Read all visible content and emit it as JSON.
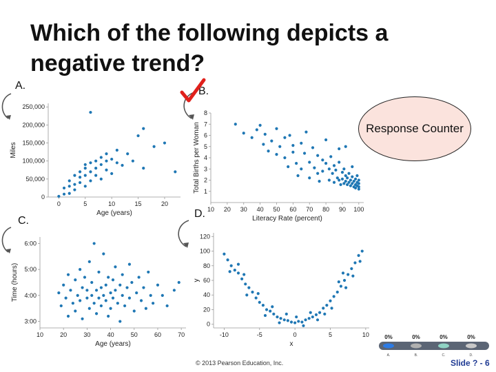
{
  "slide": {
    "title": "Which of the following depicts a negative trend?",
    "labels": {
      "a": "A.",
      "b": "B.",
      "c": "C.",
      "d": "D."
    },
    "response_counter": "Response Counter",
    "footer": "© 2013 Pearson Education, Inc.",
    "slide_number": "Slide ? - 6",
    "checkmark_color": "#e0201b",
    "point_color": "#1f77b4",
    "poll": [
      {
        "pct": "0%",
        "label": "A."
      },
      {
        "pct": "0%",
        "label": "B."
      },
      {
        "pct": "0%",
        "label": "C."
      },
      {
        "pct": "0%",
        "label": "D."
      }
    ]
  },
  "chart_data": [
    {
      "id": "A",
      "type": "scatter",
      "xlabel": "Age (years)",
      "ylabel": "Miles",
      "xlim": [
        -2,
        23
      ],
      "ylim": [
        0,
        260000
      ],
      "xticks": [
        0,
        5,
        10,
        15,
        20
      ],
      "yticks": [
        0,
        50000,
        100000,
        150000,
        200000,
        250000
      ],
      "ytick_labels": [
        "0",
        "50,000",
        "100,000",
        "150,000",
        "200,000",
        "250,000"
      ],
      "points": [
        [
          0,
          2000
        ],
        [
          1,
          8000
        ],
        [
          1,
          25000
        ],
        [
          2,
          10000
        ],
        [
          2,
          30000
        ],
        [
          2,
          45000
        ],
        [
          3,
          20000
        ],
        [
          3,
          35000
        ],
        [
          3,
          60000
        ],
        [
          4,
          40000
        ],
        [
          4,
          55000
        ],
        [
          4,
          70000
        ],
        [
          5,
          30000
        ],
        [
          5,
          60000
        ],
        [
          5,
          80000
        ],
        [
          5,
          90000
        ],
        [
          6,
          45000
        ],
        [
          6,
          70000
        ],
        [
          6,
          95000
        ],
        [
          7,
          60000
        ],
        [
          7,
          80000
        ],
        [
          7,
          100000
        ],
        [
          8,
          50000
        ],
        [
          8,
          90000
        ],
        [
          8,
          110000
        ],
        [
          9,
          75000
        ],
        [
          9,
          100000
        ],
        [
          9,
          120000
        ],
        [
          10,
          65000
        ],
        [
          10,
          105000
        ],
        [
          11,
          95000
        ],
        [
          11,
          130000
        ],
        [
          6,
          235000
        ],
        [
          12,
          88000
        ],
        [
          13,
          120000
        ],
        [
          14,
          100000
        ],
        [
          15,
          170000
        ],
        [
          16,
          80000
        ],
        [
          16,
          190000
        ],
        [
          18,
          140000
        ],
        [
          20,
          150000
        ],
        [
          22,
          70000
        ]
      ]
    },
    {
      "id": "B",
      "type": "scatter",
      "xlabel": "Literacy Rate (percent)",
      "ylabel": "Total Births per Woman",
      "xlim": [
        10,
        103
      ],
      "ylim": [
        0,
        8
      ],
      "xticks": [
        10,
        20,
        30,
        40,
        50,
        60,
        70,
        80,
        90,
        100
      ],
      "yticks": [
        1,
        2,
        3,
        4,
        5,
        6,
        7,
        8
      ],
      "points": [
        [
          25,
          7
        ],
        [
          30,
          6.2
        ],
        [
          35,
          5.8
        ],
        [
          38,
          6.5
        ],
        [
          40,
          6.9
        ],
        [
          42,
          5.2
        ],
        [
          43,
          6.1
        ],
        [
          45,
          4.6
        ],
        [
          47,
          5.5
        ],
        [
          50,
          6.6
        ],
        [
          50,
          4.3
        ],
        [
          52,
          5.0
        ],
        [
          55,
          5.8
        ],
        [
          55,
          4.0
        ],
        [
          57,
          3.2
        ],
        [
          58,
          6.0
        ],
        [
          60,
          5.1
        ],
        [
          60,
          4.5
        ],
        [
          62,
          3.5
        ],
        [
          63,
          2.4
        ],
        [
          65,
          5.3
        ],
        [
          65,
          3.0
        ],
        [
          67,
          4.4
        ],
        [
          68,
          6.3
        ],
        [
          70,
          3.6
        ],
        [
          70,
          2.2
        ],
        [
          72,
          4.9
        ],
        [
          73,
          3.1
        ],
        [
          75,
          4.2
        ],
        [
          75,
          2.6
        ],
        [
          76,
          1.9
        ],
        [
          78,
          3.8
        ],
        [
          78,
          2.8
        ],
        [
          80,
          5.6
        ],
        [
          80,
          3.5
        ],
        [
          82,
          3.0
        ],
        [
          82,
          2.0
        ],
        [
          83,
          4.1
        ],
        [
          84,
          2.6
        ],
        [
          85,
          3.3
        ],
        [
          85,
          1.8
        ],
        [
          86,
          2.9
        ],
        [
          87,
          2.2
        ],
        [
          88,
          3.6
        ],
        [
          88,
          2.0
        ],
        [
          89,
          1.6
        ],
        [
          90,
          2.7
        ],
        [
          90,
          2.1
        ],
        [
          91,
          3.0
        ],
        [
          91,
          1.7
        ],
        [
          92,
          2.4
        ],
        [
          92,
          1.9
        ],
        [
          93,
          2.2
        ],
        [
          93,
          1.6
        ],
        [
          94,
          2.6
        ],
        [
          94,
          1.8
        ],
        [
          95,
          2.0
        ],
        [
          95,
          1.5
        ],
        [
          96,
          2.3
        ],
        [
          96,
          1.7
        ],
        [
          97,
          1.9
        ],
        [
          97,
          1.4
        ],
        [
          98,
          2.1
        ],
        [
          98,
          1.6
        ],
        [
          98,
          1.3
        ],
        [
          99,
          1.8
        ],
        [
          99,
          1.5
        ],
        [
          99,
          2.4
        ],
        [
          100,
          1.7
        ],
        [
          100,
          1.4
        ],
        [
          100,
          2.0
        ],
        [
          100,
          1.2
        ],
        [
          92,
          5.0
        ],
        [
          88,
          4.8
        ],
        [
          96,
          3.2
        ]
      ]
    },
    {
      "id": "C",
      "type": "scatter",
      "xlabel": "Age (years)",
      "ylabel": "Time (hours)",
      "xlim": [
        10,
        72
      ],
      "ylim": [
        2.75,
        6.25
      ],
      "xticks": [
        10,
        20,
        30,
        40,
        50,
        60,
        70
      ],
      "yticks": [
        3,
        4,
        5,
        6
      ],
      "ytick_labels": [
        "3:00",
        "4:00",
        "5:00",
        "6:00"
      ],
      "points": [
        [
          18,
          4.1
        ],
        [
          19,
          3.6
        ],
        [
          20,
          4.4
        ],
        [
          21,
          3.9
        ],
        [
          22,
          4.8
        ],
        [
          22,
          3.2
        ],
        [
          23,
          4.2
        ],
        [
          24,
          3.7
        ],
        [
          25,
          4.6
        ],
        [
          25,
          3.4
        ],
        [
          26,
          4.0
        ],
        [
          27,
          5.0
        ],
        [
          27,
          3.8
        ],
        [
          28,
          4.3
        ],
        [
          28,
          3.1
        ],
        [
          29,
          4.7
        ],
        [
          30,
          3.9
        ],
        [
          30,
          4.2
        ],
        [
          31,
          3.5
        ],
        [
          31,
          5.3
        ],
        [
          32,
          4.0
        ],
        [
          32,
          4.5
        ],
        [
          33,
          3.7
        ],
        [
          33,
          6.0
        ],
        [
          34,
          4.2
        ],
        [
          34,
          3.3
        ],
        [
          35,
          4.9
        ],
        [
          35,
          3.9
        ],
        [
          36,
          4.3
        ],
        [
          36,
          3.6
        ],
        [
          37,
          4.0
        ],
        [
          37,
          5.6
        ],
        [
          38,
          3.8
        ],
        [
          38,
          4.4
        ],
        [
          39,
          3.2
        ],
        [
          39,
          4.7
        ],
        [
          40,
          4.1
        ],
        [
          40,
          3.5
        ],
        [
          41,
          4.6
        ],
        [
          41,
          3.9
        ],
        [
          42,
          4.2
        ],
        [
          42,
          5.1
        ],
        [
          43,
          3.7
        ],
        [
          44,
          4.4
        ],
        [
          44,
          3.0
        ],
        [
          45,
          4.0
        ],
        [
          45,
          4.8
        ],
        [
          46,
          3.6
        ],
        [
          47,
          4.3
        ],
        [
          48,
          3.9
        ],
        [
          48,
          5.2
        ],
        [
          49,
          4.5
        ],
        [
          50,
          3.4
        ],
        [
          51,
          4.1
        ],
        [
          52,
          4.7
        ],
        [
          53,
          3.8
        ],
        [
          54,
          4.3
        ],
        [
          55,
          3.5
        ],
        [
          56,
          4.9
        ],
        [
          57,
          4.0
        ],
        [
          58,
          3.7
        ],
        [
          60,
          4.4
        ],
        [
          62,
          4.0
        ],
        [
          64,
          3.6
        ],
        [
          67,
          4.2
        ],
        [
          69,
          4.5
        ]
      ]
    },
    {
      "id": "D",
      "type": "scatter",
      "xlabel": "x",
      "ylabel": "y",
      "xlim": [
        -11.5,
        10.5
      ],
      "ylim": [
        -5,
        125
      ],
      "xticks": [
        -10,
        -5,
        0,
        5,
        10
      ],
      "yticks": [
        0,
        20,
        40,
        60,
        80,
        100,
        120
      ],
      "points": [
        [
          -10,
          96
        ],
        [
          -9.5,
          88
        ],
        [
          -9,
          80
        ],
        [
          -8.5,
          74
        ],
        [
          -8,
          70
        ],
        [
          -7.5,
          62
        ],
        [
          -7,
          55
        ],
        [
          -6.5,
          50
        ],
        [
          -6,
          44
        ],
        [
          -5.5,
          36
        ],
        [
          -5,
          30
        ],
        [
          -4.5,
          26
        ],
        [
          -4,
          20
        ],
        [
          -3.5,
          18
        ],
        [
          -3,
          14
        ],
        [
          -2.5,
          10
        ],
        [
          -2,
          8
        ],
        [
          -1.5,
          6
        ],
        [
          -1,
          5
        ],
        [
          -0.5,
          3
        ],
        [
          0,
          2
        ],
        [
          0.5,
          4
        ],
        [
          1,
          3
        ],
        [
          1.5,
          6
        ],
        [
          2,
          8
        ],
        [
          2.5,
          10
        ],
        [
          3,
          13
        ],
        [
          3.5,
          16
        ],
        [
          4,
          22
        ],
        [
          4.5,
          26
        ],
        [
          5,
          32
        ],
        [
          5.5,
          38
        ],
        [
          6,
          44
        ],
        [
          6.5,
          52
        ],
        [
          7,
          60
        ],
        [
          7.5,
          68
        ],
        [
          8,
          76
        ],
        [
          8.5,
          84
        ],
        [
          9,
          94
        ],
        [
          9.5,
          100
        ],
        [
          -9.2,
          72
        ],
        [
          -8,
          82
        ],
        [
          -6.8,
          40
        ],
        [
          -5.2,
          42
        ],
        [
          -4.2,
          12
        ],
        [
          -3.2,
          24
        ],
        [
          -2.2,
          2
        ],
        [
          -1.2,
          14
        ],
        [
          0.2,
          10
        ],
        [
          1.2,
          -2
        ],
        [
          2.2,
          16
        ],
        [
          3.2,
          6
        ],
        [
          4.2,
          14
        ],
        [
          5.2,
          22
        ],
        [
          6.2,
          58
        ],
        [
          7.2,
          50
        ],
        [
          8.2,
          66
        ],
        [
          9.2,
          86
        ],
        [
          -7.2,
          68
        ],
        [
          6.8,
          70
        ]
      ]
    }
  ]
}
